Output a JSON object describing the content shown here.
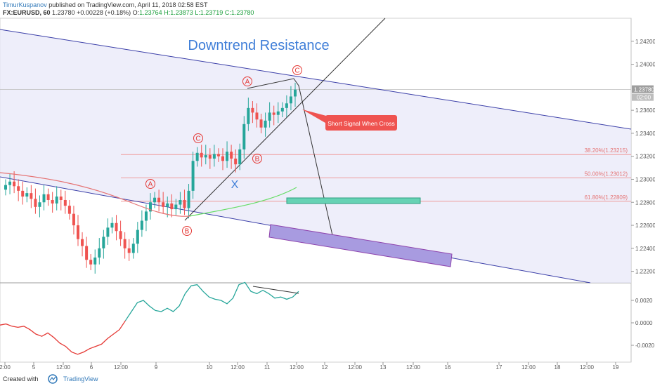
{
  "header": {
    "author": "TimurKuspanov",
    "published": "published on TradingView.com, April 11, 2018 02:58 EST",
    "symbol": "FX:EURUSD, 60",
    "ohlc_prefix": "1.23780 +0.00228 (+0.18%) O:",
    "o": "1.23764",
    "h": "H:1.23873",
    "l": "L:1.23719",
    "c": "C:1.23780"
  },
  "footer": {
    "created_with": "Created with",
    "brand": "TradingView"
  },
  "chart_data": {
    "type": "line",
    "title": "Downtrend Resistance",
    "symbol": "FX:EURUSD",
    "interval": "60",
    "price_axis": {
      "range": [
        1.221,
        1.244
      ],
      "ticks": [
        "1.24200",
        "1.24000",
        "1.23600",
        "1.23400",
        "1.23200",
        "1.23000",
        "1.22800",
        "1.22600",
        "1.22400",
        "1.22200"
      ],
      "last_price": "1.23780",
      "last_price_sub": "02:00"
    },
    "oscillator_axis": {
      "range": [
        -0.0035,
        0.0035
      ],
      "ticks": [
        "0.0020",
        "0.0000",
        "-0.0020"
      ]
    },
    "time_axis": {
      "ticks": [
        "2:00",
        "5",
        "12:00",
        "6",
        "12:00",
        "9",
        "10",
        "12:00",
        "11",
        "12:00",
        "12",
        "12:00",
        "13",
        "12:00",
        "16",
        "17",
        "12:00",
        "18",
        "12:00",
        "19"
      ]
    },
    "candle_colors": {
      "up": "#26a69a",
      "down": "#ef5350"
    },
    "colors": {
      "resistance": "#3b3fa8",
      "zone_fill": "#e8e8f8",
      "fib": "#ef9a9a",
      "target_green": "#66d2b4",
      "target_purple": "#a89be0",
      "ma_red": "#e57373",
      "ma_green": "#66dd66",
      "osc_green": "#26a69a",
      "osc_red": "#e53935"
    },
    "candles_close": [
      1.2295,
      1.2298,
      1.2294,
      1.229,
      1.2285,
      1.2288,
      1.2283,
      1.2276,
      1.228,
      1.2287,
      1.2282,
      1.2279,
      1.2285,
      1.2282,
      1.2277,
      1.227,
      1.226,
      1.2248,
      1.2242,
      1.223,
      1.2226,
      1.2232,
      1.224,
      1.225,
      1.2258,
      1.2262,
      1.2255,
      1.2248,
      1.224,
      1.2236,
      1.2244,
      1.2256,
      1.2264,
      1.2272,
      1.228,
      1.2284,
      1.228,
      1.2276,
      1.2279,
      1.2274,
      1.2278,
      1.2282,
      1.2275,
      1.229,
      1.2316,
      1.2323,
      1.2319,
      1.2321,
      1.2318,
      1.2322,
      1.232,
      1.2316,
      1.2324,
      1.2318,
      1.2313,
      1.2326,
      1.2348,
      1.2362,
      1.2358,
      1.2352,
      1.2345,
      1.2351,
      1.2358,
      1.2356,
      1.2359,
      1.2362,
      1.2366,
      1.2372,
      1.2378
    ],
    "fibonacci": [
      {
        "label": "38.20%(1.23215)",
        "price": 1.23215
      },
      {
        "label": "50.00%(1.23012)",
        "price": 1.23012
      },
      {
        "label": "61.80%(1.22809)",
        "price": 1.22809
      }
    ],
    "annotations": {
      "signal": "Short Signal When Cross",
      "wave_labels": [
        "A",
        "B",
        "C",
        "A",
        "B",
        "C",
        "X"
      ]
    },
    "oscillator": [
      -0.0002,
      -0.0001,
      -0.0003,
      -0.0004,
      -0.0003,
      -0.0006,
      -0.001,
      -0.0012,
      -0.0009,
      -0.0013,
      -0.0018,
      -0.0021,
      -0.0026,
      -0.0028,
      -0.0026,
      -0.0023,
      -0.0021,
      -0.0019,
      -0.0014,
      -0.001,
      -0.0006,
      0.0002,
      0.001,
      0.0018,
      0.002,
      0.0015,
      0.0011,
      0.001,
      0.0013,
      0.001,
      0.0015,
      0.0026,
      0.0033,
      0.0034,
      0.0028,
      0.0023,
      0.0021,
      0.002,
      0.0017,
      0.0022,
      0.0034,
      0.0036,
      0.0028,
      0.0026,
      0.0029,
      0.0026,
      0.0022,
      0.0023,
      0.0021,
      0.0023,
      0.0028
    ]
  }
}
